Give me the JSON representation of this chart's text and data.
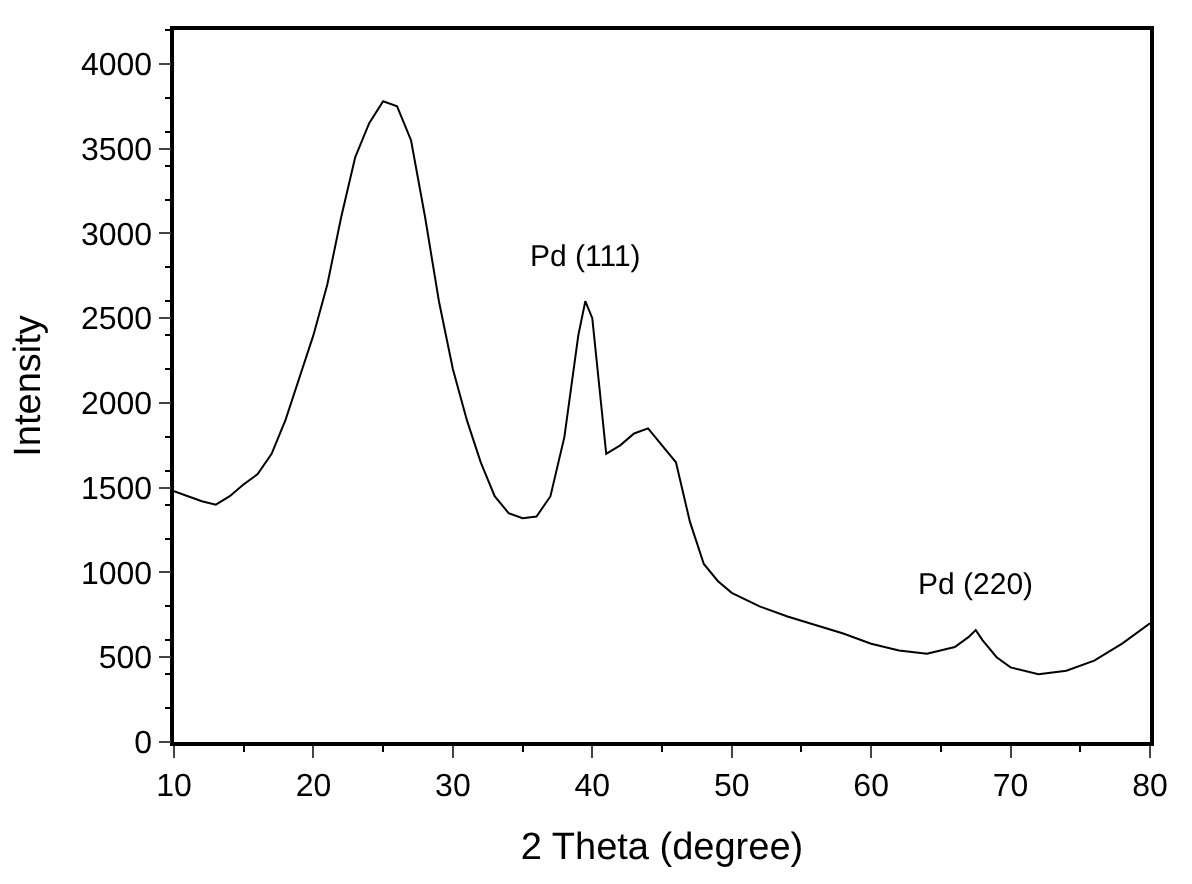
{
  "chart_data": {
    "type": "line",
    "xlabel": "2 Theta (degree)",
    "ylabel": "Intensity",
    "x": [
      10,
      11,
      12,
      13,
      14,
      15,
      16,
      17,
      18,
      19,
      20,
      21,
      22,
      23,
      24,
      25,
      26,
      27,
      28,
      29,
      30,
      31,
      32,
      33,
      34,
      35,
      36,
      37,
      38,
      39,
      39.5,
      40,
      40.5,
      41,
      42,
      43,
      44,
      45,
      46,
      47,
      48,
      49,
      50,
      52,
      54,
      56,
      58,
      60,
      62,
      64,
      66,
      67,
      67.5,
      68,
      69,
      70,
      72,
      74,
      76,
      78,
      80
    ],
    "series": [
      {
        "color": "#000000",
        "values": [
          1480,
          1450,
          1420,
          1400,
          1450,
          1520,
          1580,
          1700,
          1900,
          2150,
          2400,
          2700,
          3100,
          3450,
          3650,
          3780,
          3750,
          3550,
          3100,
          2600,
          2200,
          1900,
          1650,
          1450,
          1350,
          1320,
          1330,
          1450,
          1800,
          2400,
          2600,
          2500,
          2100,
          1700,
          1750,
          1820,
          1850,
          1750,
          1650,
          1300,
          1050,
          950,
          880,
          800,
          740,
          690,
          640,
          580,
          540,
          520,
          560,
          620,
          660,
          600,
          500,
          440,
          400,
          420,
          480,
          580,
          700
        ]
      }
    ],
    "annotations": [
      {
        "text": "Pd (111)",
        "x": 39.5,
        "y": 2600
      },
      {
        "text": "Pd (220)",
        "x": 67.5,
        "y": 660
      }
    ],
    "xlim": [
      10,
      80
    ],
    "xticks": [
      10,
      20,
      30,
      40,
      50,
      60,
      70,
      80
    ],
    "ylim": [
      0,
      4200
    ],
    "yticks": [
      0,
      500,
      1000,
      1500,
      2000,
      2500,
      3000,
      3500,
      4000
    ],
    "marker": "none",
    "line_style": "solid"
  }
}
